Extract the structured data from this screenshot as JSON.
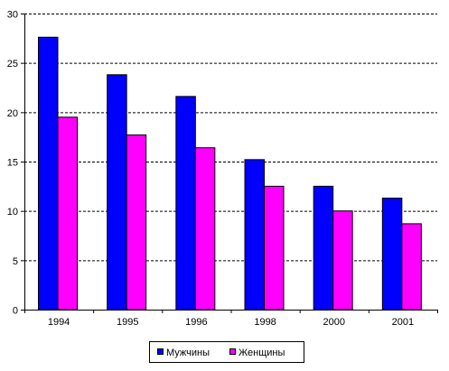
{
  "chart_data": {
    "type": "bar",
    "categories": [
      "1994",
      "1995",
      "1996",
      "1998",
      "2000",
      "2001"
    ],
    "series": [
      {
        "name": "Мужчины",
        "values": [
          27.6,
          23.8,
          21.6,
          15.2,
          12.5,
          11.3
        ],
        "color": "#0000ff"
      },
      {
        "name": "Женщины",
        "values": [
          19.5,
          17.7,
          16.4,
          12.5,
          10.0,
          8.7
        ],
        "color": "#ff00ff"
      }
    ],
    "yticks": [
      0,
      5,
      10,
      15,
      20,
      25,
      30
    ],
    "ylim": [
      0,
      30
    ],
    "grid": "horizontal-dashed",
    "legend_position": "bottom"
  }
}
